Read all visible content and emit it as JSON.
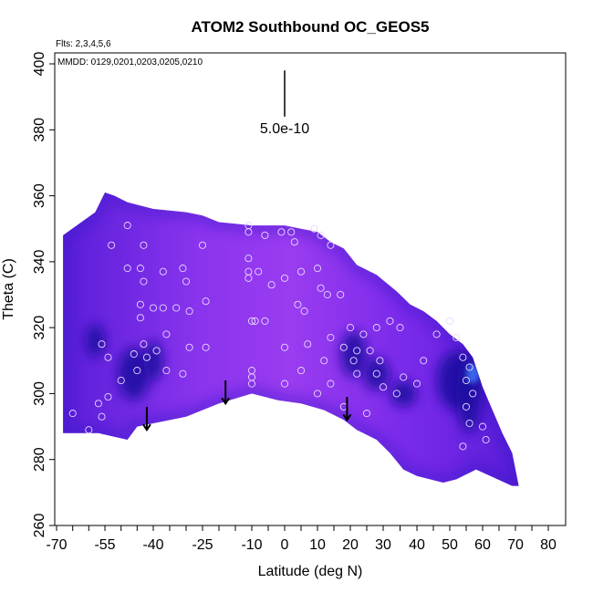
{
  "chart_data": {
    "type": "heatmap",
    "title": "ATOM2 Southbound OC_GEOS5",
    "flights_note": "Flts: 2,3,4,5,6",
    "dates_note": "MMDD: 0129,0201,0203,0205,0210",
    "xlabel": "Latitude (deg N)",
    "ylabel": "Theta (C)",
    "xlim": [
      -70,
      82
    ],
    "ylim": [
      260,
      405
    ],
    "xticks": [
      -70,
      -55,
      -40,
      -25,
      -10,
      0,
      10,
      20,
      30,
      40,
      50,
      60,
      70,
      80
    ],
    "xtick_labels": [
      "-70",
      "-55",
      "-40",
      "-25",
      "-10",
      "0",
      "10",
      "20",
      "30",
      "40",
      "50",
      "60",
      "70",
      "80"
    ],
    "xminor_ticks": [
      -65,
      -60,
      -50,
      -45,
      -35,
      -30,
      -20,
      -15,
      -5,
      5,
      15,
      25,
      35,
      45,
      55,
      65,
      75
    ],
    "yticks": [
      260,
      280,
      300,
      320,
      340,
      360,
      380,
      400
    ],
    "ytick_labels": [
      "260",
      "280",
      "300",
      "320",
      "340",
      "360",
      "380",
      "400"
    ],
    "scale_bar": {
      "label": "5.0e-10",
      "x": 0,
      "y_bottom": 384,
      "y_top": 398
    },
    "colors": {
      "field_light": "#9a3cf0",
      "field_mid": "#7a2aea",
      "field_dark": "#3412c8",
      "field_deep": "#1a10a0",
      "field_bright": "#3a6cf0",
      "marker": "#e8d8ff",
      "ink": "#000000"
    },
    "envelope": {
      "upper": [
        [
          -68,
          348
        ],
        [
          -58,
          355
        ],
        [
          -55,
          361
        ],
        [
          -52,
          360
        ],
        [
          -48,
          358
        ],
        [
          -40,
          356
        ],
        [
          -30,
          355
        ],
        [
          -25,
          354
        ],
        [
          -20,
          352
        ],
        [
          -10,
          351
        ],
        [
          0,
          351
        ],
        [
          5,
          350
        ],
        [
          10,
          349
        ],
        [
          14,
          346
        ],
        [
          18,
          344
        ],
        [
          22,
          339
        ],
        [
          28,
          336
        ],
        [
          34,
          331
        ],
        [
          38,
          327
        ],
        [
          42,
          325
        ],
        [
          46,
          322
        ],
        [
          50,
          318
        ],
        [
          54,
          315
        ],
        [
          57,
          311
        ],
        [
          60,
          302
        ],
        [
          63,
          295
        ],
        [
          66,
          288
        ],
        [
          69,
          282
        ],
        [
          71,
          272
        ],
        [
          69,
          272
        ],
        [
          58,
          277
        ]
      ],
      "lower": [
        [
          -68,
          288
        ],
        [
          -57,
          288
        ],
        [
          -48,
          286
        ],
        [
          -45,
          290
        ],
        [
          -40,
          291
        ],
        [
          -30,
          293
        ],
        [
          -20,
          297
        ],
        [
          -10,
          300
        ],
        [
          -2,
          298
        ],
        [
          5,
          297
        ],
        [
          12,
          295
        ],
        [
          18,
          292
        ],
        [
          22,
          289
        ],
        [
          28,
          286
        ],
        [
          32,
          282
        ],
        [
          36,
          277
        ],
        [
          40,
          275
        ],
        [
          44,
          274
        ],
        [
          48,
          273
        ],
        [
          52,
          274
        ],
        [
          56,
          276
        ],
        [
          58,
          277
        ]
      ]
    },
    "dark_patches": [
      {
        "x": -46,
        "y": 306,
        "rx": 5,
        "ry": 8
      },
      {
        "x": -40,
        "y": 310,
        "rx": 3,
        "ry": 6
      },
      {
        "x": 21,
        "y": 312,
        "rx": 4,
        "ry": 7
      },
      {
        "x": 28,
        "y": 306,
        "rx": 4,
        "ry": 5
      },
      {
        "x": 36,
        "y": 300,
        "rx": 4,
        "ry": 4
      },
      {
        "x": 52,
        "y": 304,
        "rx": 6,
        "ry": 9
      },
      {
        "x": 56,
        "y": 300,
        "rx": 4,
        "ry": 12
      },
      {
        "x": -58,
        "y": 316,
        "rx": 3,
        "ry": 5
      }
    ],
    "bright_patches": [
      {
        "x": 57,
        "y": 306,
        "rx": 2,
        "ry": 3
      }
    ],
    "arrows": [
      {
        "x": -42,
        "y_top": 296,
        "y_tip": 289
      },
      {
        "x": -18,
        "y_top": 304,
        "y_tip": 297
      },
      {
        "x": 19,
        "y_top": 299,
        "y_tip": 292
      }
    ],
    "markers": [
      [
        -48,
        351
      ],
      [
        -53,
        345
      ],
      [
        -43,
        345
      ],
      [
        -37,
        337
      ],
      [
        -48,
        338
      ],
      [
        -44,
        338
      ],
      [
        -31,
        338
      ],
      [
        -25,
        345
      ],
      [
        -30,
        334
      ],
      [
        -43,
        334
      ],
      [
        -44,
        327
      ],
      [
        -44,
        323
      ],
      [
        -40,
        326
      ],
      [
        -37,
        326
      ],
      [
        -33,
        326
      ],
      [
        -29,
        325
      ],
      [
        -24,
        328
      ],
      [
        -36,
        318
      ],
      [
        -39,
        313
      ],
      [
        -43,
        315
      ],
      [
        -46,
        312
      ],
      [
        -45,
        307
      ],
      [
        -50,
        304
      ],
      [
        -54,
        311
      ],
      [
        -56,
        315
      ],
      [
        -57,
        297
      ],
      [
        -54,
        299
      ],
      [
        -56,
        293
      ],
      [
        -65,
        294
      ],
      [
        -60,
        289
      ],
      [
        -42,
        311
      ],
      [
        -29,
        314
      ],
      [
        -24,
        314
      ],
      [
        -36,
        307
      ],
      [
        -31,
        306
      ],
      [
        -11,
        351
      ],
      [
        -11,
        349
      ],
      [
        -6,
        348
      ],
      [
        -1,
        349
      ],
      [
        2,
        349
      ],
      [
        -11,
        341
      ],
      [
        -11,
        337
      ],
      [
        -8,
        337
      ],
      [
        -11,
        335
      ],
      [
        -4,
        333
      ],
      [
        0,
        335
      ],
      [
        5,
        337
      ],
      [
        3,
        346
      ],
      [
        9,
        350
      ],
      [
        11,
        348
      ],
      [
        14,
        345
      ],
      [
        10,
        338
      ],
      [
        11,
        332
      ],
      [
        13,
        330
      ],
      [
        17,
        330
      ],
      [
        6,
        325
      ],
      [
        4,
        327
      ],
      [
        -9,
        322
      ],
      [
        -10,
        322
      ],
      [
        -6,
        322
      ],
      [
        0,
        314
      ],
      [
        0,
        303
      ],
      [
        -10,
        307
      ],
      [
        -10,
        305
      ],
      [
        -10,
        303
      ],
      [
        5,
        307
      ],
      [
        7,
        315
      ],
      [
        12,
        310
      ],
      [
        14,
        317
      ],
      [
        20,
        320
      ],
      [
        24,
        318
      ],
      [
        28,
        320
      ],
      [
        32,
        322
      ],
      [
        35,
        320
      ],
      [
        18,
        314
      ],
      [
        22,
        313
      ],
      [
        26,
        313
      ],
      [
        21,
        310
      ],
      [
        29,
        310
      ],
      [
        28,
        306
      ],
      [
        36,
        305
      ],
      [
        40,
        303
      ],
      [
        42,
        310
      ],
      [
        46,
        318
      ],
      [
        50,
        322
      ],
      [
        52,
        317
      ],
      [
        54,
        311
      ],
      [
        56,
        308
      ],
      [
        55,
        304
      ],
      [
        57,
        300
      ],
      [
        55,
        296
      ],
      [
        56,
        291
      ],
      [
        60,
        290
      ],
      [
        54,
        284
      ],
      [
        61,
        286
      ],
      [
        30,
        302
      ],
      [
        34,
        300
      ],
      [
        22,
        306
      ],
      [
        14,
        303
      ],
      [
        10,
        300
      ],
      [
        18,
        296
      ],
      [
        25,
        294
      ]
    ]
  }
}
